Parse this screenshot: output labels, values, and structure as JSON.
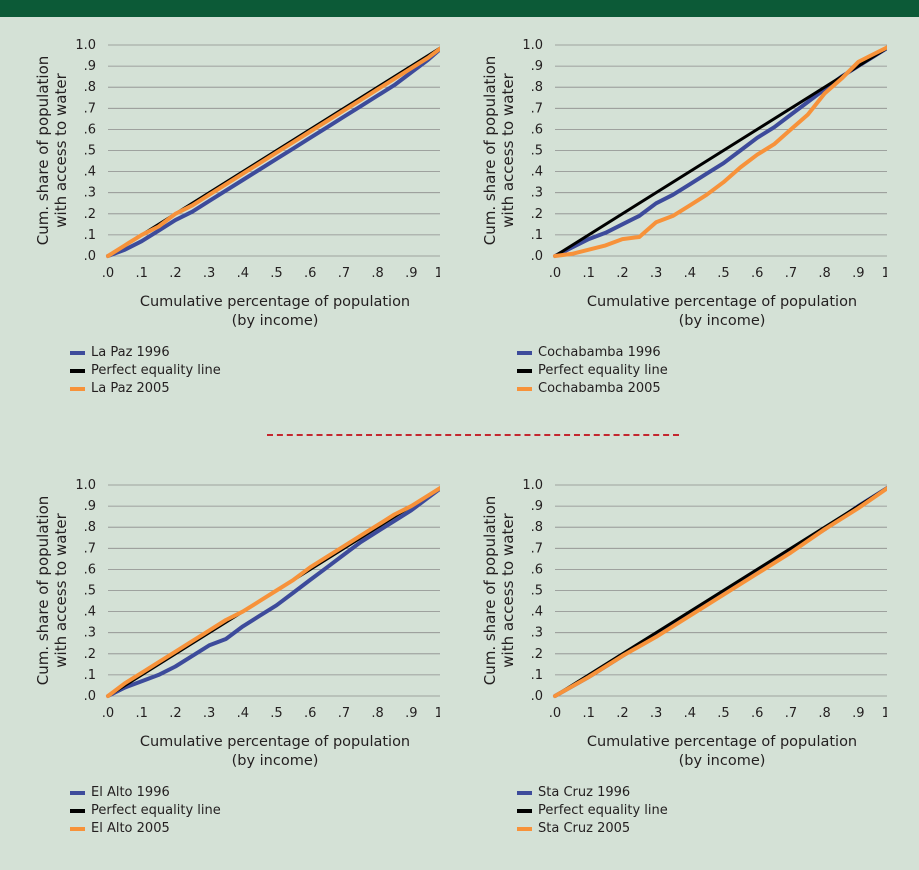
{
  "colors": {
    "series_1996": "#3d4b9b",
    "equality": "#000000",
    "series_2005": "#f7923a",
    "grid": "#8c8c8c",
    "banner": "#0c5a37",
    "divider": "#c4272f"
  },
  "axis": {
    "ylabel_line1": "Cum. share of population",
    "ylabel_line2": "with access to water",
    "xlabel_line1": "Cumulative percentage of population",
    "xlabel_line2": "(by income)",
    "ticks": [
      ".0",
      ".1",
      ".2",
      ".3",
      ".4",
      ".5",
      ".6",
      ".7",
      ".8",
      ".9",
      "1.0"
    ]
  },
  "chart_data": [
    {
      "type": "line",
      "xlabel": "Cumulative percentage of population (by income)",
      "ylabel": "Cum. share of population with access to water",
      "xlim": [
        0,
        1
      ],
      "ylim": [
        0,
        1
      ],
      "grid": true,
      "legend_position": "below",
      "series": [
        {
          "name": "La Paz 1996",
          "x": [
            0,
            0.05,
            0.1,
            0.15,
            0.2,
            0.25,
            0.3,
            0.35,
            0.4,
            0.45,
            0.5,
            0.55,
            0.6,
            0.65,
            0.7,
            0.75,
            0.8,
            0.85,
            0.9,
            0.95,
            1.0
          ],
          "y": [
            0,
            0.03,
            0.07,
            0.12,
            0.17,
            0.21,
            0.26,
            0.31,
            0.36,
            0.41,
            0.46,
            0.51,
            0.56,
            0.61,
            0.66,
            0.71,
            0.76,
            0.81,
            0.87,
            0.93,
            1.0
          ]
        },
        {
          "name": "Perfect equality line",
          "x": [
            0,
            1
          ],
          "y": [
            0,
            1
          ]
        },
        {
          "name": "La Paz 2005",
          "x": [
            0,
            0.05,
            0.1,
            0.15,
            0.2,
            0.25,
            0.3,
            0.35,
            0.4,
            0.45,
            0.5,
            0.55,
            0.6,
            0.65,
            0.7,
            0.75,
            0.8,
            0.85,
            0.9,
            0.95,
            1.0
          ],
          "y": [
            0,
            0.05,
            0.1,
            0.14,
            0.2,
            0.24,
            0.29,
            0.34,
            0.39,
            0.44,
            0.49,
            0.54,
            0.59,
            0.64,
            0.69,
            0.74,
            0.79,
            0.84,
            0.89,
            0.94,
            1.0
          ]
        }
      ]
    },
    {
      "type": "line",
      "xlabel": "Cumulative percentage of population (by income)",
      "ylabel": "Cum. share of population with access to water",
      "xlim": [
        0,
        1
      ],
      "ylim": [
        0,
        1
      ],
      "grid": true,
      "legend_position": "below",
      "series": [
        {
          "name": "Cochabamba 1996",
          "x": [
            0,
            0.05,
            0.1,
            0.15,
            0.2,
            0.25,
            0.3,
            0.35,
            0.4,
            0.45,
            0.5,
            0.55,
            0.6,
            0.65,
            0.7,
            0.75,
            0.8,
            0.85,
            0.9,
            0.95,
            1.0
          ],
          "y": [
            0,
            0.04,
            0.08,
            0.11,
            0.15,
            0.19,
            0.25,
            0.29,
            0.34,
            0.39,
            0.44,
            0.5,
            0.56,
            0.61,
            0.67,
            0.73,
            0.79,
            0.85,
            0.9,
            0.95,
            1.0
          ]
        },
        {
          "name": "Perfect equality line",
          "x": [
            0,
            1
          ],
          "y": [
            0,
            1
          ]
        },
        {
          "name": "Cochabamba 2005",
          "x": [
            0,
            0.05,
            0.1,
            0.15,
            0.2,
            0.25,
            0.3,
            0.35,
            0.4,
            0.45,
            0.5,
            0.55,
            0.6,
            0.65,
            0.7,
            0.75,
            0.8,
            0.85,
            0.9,
            0.95,
            1.0
          ],
          "y": [
            0,
            0.01,
            0.03,
            0.05,
            0.08,
            0.09,
            0.16,
            0.19,
            0.24,
            0.29,
            0.35,
            0.42,
            0.48,
            0.53,
            0.6,
            0.67,
            0.77,
            0.84,
            0.92,
            0.96,
            1.0
          ]
        }
      ]
    },
    {
      "type": "line",
      "xlabel": "Cumulative percentage of population (by income)",
      "ylabel": "Cum. share of population with access to water",
      "xlim": [
        0,
        1
      ],
      "ylim": [
        0,
        1
      ],
      "grid": true,
      "legend_position": "below",
      "series": [
        {
          "name": "El Alto 1996",
          "x": [
            0,
            0.05,
            0.1,
            0.15,
            0.2,
            0.25,
            0.3,
            0.35,
            0.4,
            0.45,
            0.5,
            0.55,
            0.6,
            0.65,
            0.7,
            0.75,
            0.8,
            0.85,
            0.9,
            0.95,
            1.0
          ],
          "y": [
            0,
            0.04,
            0.07,
            0.1,
            0.14,
            0.19,
            0.24,
            0.27,
            0.33,
            0.38,
            0.43,
            0.49,
            0.55,
            0.61,
            0.67,
            0.73,
            0.78,
            0.83,
            0.88,
            0.94,
            1.0
          ]
        },
        {
          "name": "Perfect equality line",
          "x": [
            0,
            1
          ],
          "y": [
            0,
            1
          ]
        },
        {
          "name": "El Alto 2005",
          "x": [
            0,
            0.05,
            0.1,
            0.15,
            0.2,
            0.25,
            0.3,
            0.35,
            0.4,
            0.45,
            0.5,
            0.55,
            0.6,
            0.65,
            0.7,
            0.75,
            0.8,
            0.85,
            0.9,
            0.95,
            1.0
          ],
          "y": [
            0,
            0.06,
            0.11,
            0.16,
            0.21,
            0.26,
            0.31,
            0.36,
            0.4,
            0.45,
            0.5,
            0.55,
            0.61,
            0.66,
            0.71,
            0.76,
            0.81,
            0.86,
            0.9,
            0.95,
            1.0
          ]
        }
      ]
    },
    {
      "type": "line",
      "xlabel": "Cumulative percentage of population (by income)",
      "ylabel": "Cum. share of population with access to water",
      "xlim": [
        0,
        1
      ],
      "ylim": [
        0,
        1
      ],
      "grid": true,
      "legend_position": "below",
      "series": [
        {
          "name": "Sta Cruz 1996",
          "x": [
            0,
            0.1,
            0.2,
            0.3,
            0.4,
            0.5,
            0.6,
            0.7,
            0.8,
            0.9,
            1.0
          ],
          "y": [
            0,
            0.09,
            0.19,
            0.29,
            0.39,
            0.49,
            0.59,
            0.69,
            0.79,
            0.9,
            1.0
          ]
        },
        {
          "name": "Perfect equality line",
          "x": [
            0,
            1
          ],
          "y": [
            0,
            1
          ]
        },
        {
          "name": "Sta Cruz 2005",
          "x": [
            0,
            0.1,
            0.2,
            0.3,
            0.4,
            0.5,
            0.6,
            0.7,
            0.8,
            0.9,
            1.0
          ],
          "y": [
            0,
            0.09,
            0.19,
            0.28,
            0.38,
            0.48,
            0.58,
            0.68,
            0.79,
            0.89,
            1.0
          ]
        }
      ]
    }
  ]
}
